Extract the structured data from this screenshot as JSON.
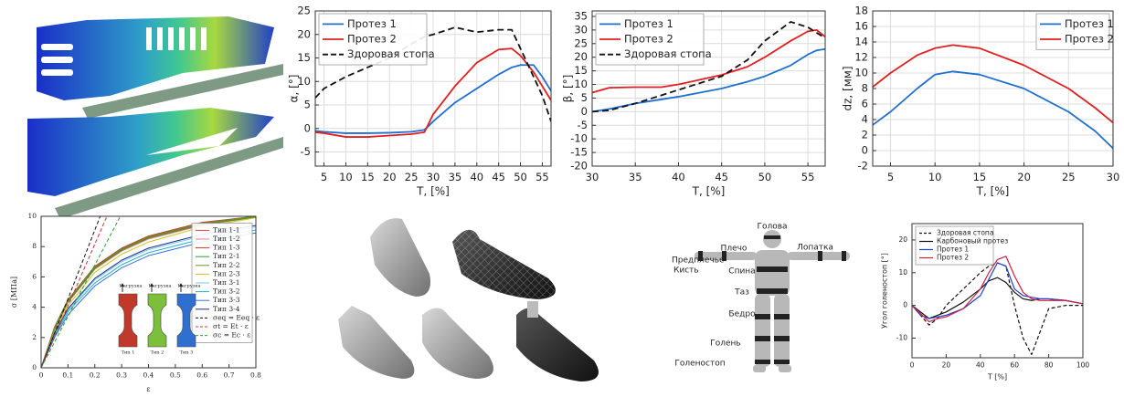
{
  "chart_data": [
    {
      "type": "line",
      "xlabel": "T, [%]",
      "ylabel": "α, [°]",
      "x": [
        3,
        5,
        10,
        15,
        20,
        25,
        28,
        30,
        35,
        40,
        45,
        48,
        50,
        53,
        55,
        57
      ],
      "xlim": [
        3,
        57
      ],
      "xticks": [
        5,
        10,
        15,
        20,
        25,
        30,
        35,
        40,
        45,
        50,
        55
      ],
      "ylim": [
        -8,
        25
      ],
      "yticks": [
        -5,
        0,
        5,
        10,
        15,
        20,
        25
      ],
      "grid": true,
      "legend": "upper left",
      "series": [
        {
          "name": "Протез 1",
          "color": "#1f6fd1",
          "values": [
            -0.5,
            -0.7,
            -1,
            -1,
            -0.9,
            -0.7,
            -0.3,
            1.5,
            5.5,
            8.5,
            11.5,
            13,
            13.5,
            13.5,
            11,
            8
          ]
        },
        {
          "name": "Протез 2",
          "color": "#e02020",
          "values": [
            -0.8,
            -1,
            -1.8,
            -1.8,
            -1.5,
            -1.2,
            -0.8,
            3,
            9,
            14,
            16.8,
            17,
            15.5,
            12,
            9,
            6
          ]
        },
        {
          "name": "Здоровая стопа",
          "color": "#111111",
          "style": "dashed",
          "values": [
            6.5,
            8.5,
            11,
            13,
            15,
            18,
            19.5,
            20,
            21.5,
            20.5,
            21,
            21,
            17,
            11,
            7,
            1.5
          ]
        }
      ]
    },
    {
      "type": "line",
      "xlabel": "T, [%]",
      "ylabel": "β, [°]",
      "x": [
        30,
        32,
        35,
        38,
        40,
        45,
        48,
        50,
        53,
        55,
        56,
        57
      ],
      "xlim": [
        30,
        57
      ],
      "xticks": [
        30,
        35,
        40,
        45,
        50,
        55
      ],
      "ylim": [
        -20,
        37
      ],
      "yticks": [
        -20,
        -15,
        -10,
        -5,
        0,
        5,
        10,
        15,
        20,
        25,
        30,
        35
      ],
      "grid": true,
      "legend": "upper left",
      "series": [
        {
          "name": "Протез 1",
          "color": "#1f6fd1",
          "values": [
            0,
            1,
            3,
            4.5,
            5.5,
            8.5,
            11,
            13,
            17,
            21,
            22.5,
            23
          ]
        },
        {
          "name": "Протез 2",
          "color": "#e02020",
          "values": [
            7,
            8.8,
            9,
            9,
            10,
            13.5,
            16.5,
            20,
            26,
            29.5,
            30,
            27.5
          ]
        },
        {
          "name": "Здоровая стопа",
          "color": "#111111",
          "style": "dashed",
          "values": [
            0,
            0.5,
            3,
            6,
            8,
            13,
            19,
            26,
            33,
            31,
            29,
            27
          ]
        }
      ]
    },
    {
      "type": "line",
      "xlabel": "T, [%]",
      "ylabel": "dz, [мм]",
      "x": [
        3,
        5,
        8,
        10,
        12,
        15,
        20,
        25,
        28,
        30
      ],
      "xlim": [
        3,
        30
      ],
      "xticks": [
        5,
        10,
        15,
        20,
        25,
        30
      ],
      "ylim": [
        -2,
        18
      ],
      "yticks": [
        -2,
        0,
        2,
        4,
        6,
        8,
        10,
        12,
        14,
        16,
        18
      ],
      "grid": true,
      "legend": "upper right",
      "series": [
        {
          "name": "Протез 1",
          "color": "#1f6fd1",
          "values": [
            3.3,
            5,
            8,
            9.8,
            10.2,
            9.8,
            8,
            5,
            2.5,
            0.3
          ]
        },
        {
          "name": "Протез 2",
          "color": "#e02020",
          "values": [
            8.2,
            10,
            12.3,
            13.2,
            13.6,
            13.2,
            11,
            8,
            5.5,
            3.6
          ]
        }
      ]
    },
    {
      "type": "line",
      "xlabel": "ε",
      "ylabel": "σ [МПа]",
      "xlim": [
        0,
        0.8
      ],
      "xticks": [
        0,
        0.1,
        0.2,
        0.3,
        0.4,
        0.5,
        0.6,
        0.7,
        0.8
      ],
      "ylim": [
        0,
        10
      ],
      "yticks": [
        0,
        2,
        4,
        6,
        8,
        10
      ],
      "grid": false,
      "legend": "center right",
      "series": [
        {
          "name": "Тип 1-1",
          "color": "#e04040",
          "x": [
            0,
            0.05,
            0.1,
            0.2,
            0.3,
            0.4,
            0.6,
            0.8
          ],
          "values": [
            0,
            2.6,
            4.4,
            6.6,
            7.8,
            8.6,
            9.5,
            10
          ]
        },
        {
          "name": "Тип 1-2",
          "color": "#f08080",
          "x": [
            0,
            0.05,
            0.1,
            0.2,
            0.3,
            0.4,
            0.6,
            0.8
          ],
          "values": [
            0,
            2.5,
            4.3,
            6.5,
            7.7,
            8.5,
            9.4,
            9.95
          ]
        },
        {
          "name": "Тип 1-3",
          "color": "#c0392b",
          "x": [
            0,
            0.05,
            0.1,
            0.2,
            0.3,
            0.4,
            0.6,
            0.8
          ],
          "values": [
            0,
            2.7,
            4.5,
            6.7,
            7.9,
            8.7,
            9.6,
            10
          ]
        },
        {
          "name": "Тип 2-1",
          "color": "#2e9e3a",
          "x": [
            0,
            0.05,
            0.1,
            0.2,
            0.3,
            0.4,
            0.6,
            0.8
          ],
          "values": [
            0,
            2.55,
            4.35,
            6.55,
            7.75,
            8.55,
            9.45,
            9.95
          ]
        },
        {
          "name": "Тип 2-2",
          "color": "#6b8e23",
          "x": [
            0,
            0.05,
            0.1,
            0.2,
            0.3,
            0.4,
            0.6,
            0.8
          ],
          "values": [
            0,
            2.65,
            4.45,
            6.65,
            7.85,
            8.65,
            9.55,
            10
          ]
        },
        {
          "name": "Тип 2-3",
          "color": "#d4c020",
          "x": [
            0,
            0.05,
            0.1,
            0.2,
            0.3,
            0.4,
            0.6,
            0.8
          ],
          "values": [
            0,
            2.4,
            4.1,
            6.3,
            7.5,
            8.3,
            9.3,
            9.9
          ]
        },
        {
          "name": "Тип 3-1",
          "color": "#7ec8e3",
          "x": [
            0,
            0.05,
            0.1,
            0.2,
            0.3,
            0.4,
            0.6,
            0.8
          ],
          "values": [
            0,
            2.2,
            3.8,
            5.8,
            7,
            7.8,
            8.7,
            9.3
          ]
        },
        {
          "name": "Тип 3-2",
          "color": "#20b2c8",
          "x": [
            0,
            0.05,
            0.1,
            0.2,
            0.3,
            0.4,
            0.6,
            0.8
          ],
          "values": [
            0,
            2.1,
            3.7,
            5.6,
            6.8,
            7.6,
            8.5,
            9.1
          ]
        },
        {
          "name": "Тип 3-3",
          "color": "#3a6fd8",
          "x": [
            0,
            0.05,
            0.1,
            0.2,
            0.3,
            0.4,
            0.6,
            0.8
          ],
          "values": [
            0,
            2,
            3.5,
            5.4,
            6.6,
            7.4,
            8.3,
            8.9
          ]
        },
        {
          "name": "Тип 3-4",
          "color": "#1a2a8a",
          "x": [
            0,
            0.05,
            0.1,
            0.2,
            0.3,
            0.4,
            0.6,
            0.8
          ],
          "values": [
            0,
            2.3,
            3.9,
            5.9,
            7.1,
            7.9,
            8.8,
            9.4
          ]
        },
        {
          "name": "σeq = Eeq · ε",
          "color": "#111111",
          "style": "dashed",
          "x": [
            0,
            0.22
          ],
          "values": [
            0,
            10
          ]
        },
        {
          "name": "σt = Et · ε",
          "color": "#d03030",
          "style": "dashed",
          "x": [
            0,
            0.245
          ],
          "values": [
            0,
            10
          ]
        },
        {
          "name": "σc = Ec · ε",
          "color": "#2e9e3a",
          "style": "dashed",
          "x": [
            0,
            0.295
          ],
          "values": [
            0,
            10
          ]
        }
      ],
      "inset": [
        {
          "label": "Тип 1",
          "load": "Нагрузка",
          "color": "#c0392b"
        },
        {
          "label": "Тип 2",
          "load": "Нагрузка",
          "color": "#7cbf3a"
        },
        {
          "label": "Тип 3",
          "load": "Нагрузка",
          "color": "#2f6fd0"
        }
      ]
    },
    {
      "type": "line",
      "xlabel": "T [%]",
      "ylabel": "Угол голеностоп [°]",
      "x": [
        0,
        5,
        10,
        15,
        20,
        30,
        40,
        45,
        50,
        55,
        60,
        65,
        70,
        75,
        80,
        90,
        100
      ],
      "xlim": [
        0,
        100
      ],
      "xticks": [
        0,
        20,
        40,
        60,
        80,
        100
      ],
      "ylim": [
        -16,
        25
      ],
      "yticks": [
        -10,
        0,
        10,
        20
      ],
      "grid": false,
      "legend": "upper left",
      "series": [
        {
          "name": "Здоровая стопа",
          "color": "#111111",
          "style": "dashed",
          "values": [
            0,
            -3,
            -6,
            -4,
            0,
            5,
            10,
            12,
            13,
            12,
            0,
            -10,
            -15,
            -8,
            -1,
            0,
            0
          ]
        },
        {
          "name": "Карбоновый протез",
          "color": "#111111",
          "values": [
            0,
            -2,
            -4,
            -3,
            -2,
            1,
            5,
            7.5,
            8.5,
            7,
            4,
            2,
            1.5,
            2,
            2,
            1.5,
            0.5
          ]
        },
        {
          "name": "Протез 1",
          "color": "#1f3fd1",
          "values": [
            0,
            -3,
            -4,
            -3.5,
            -3,
            -1,
            3,
            8,
            13,
            12,
            5,
            3,
            2.5,
            2,
            2,
            1.5,
            0.5
          ]
        },
        {
          "name": "Протез 2",
          "color": "#d02040",
          "values": [
            0,
            -2.5,
            -5,
            -4,
            -3.5,
            -1,
            5,
            10,
            14,
            15,
            9,
            4,
            2,
            1.5,
            1.5,
            1.5,
            0.5
          ]
        }
      ]
    }
  ],
  "body_diagram": {
    "labels": [
      "Голова",
      "Плечо",
      "Лопатка",
      "Предплечье",
      "Кисть",
      "Спина",
      "Таз",
      "Бедро",
      "Голень",
      "Голеностоп"
    ]
  }
}
